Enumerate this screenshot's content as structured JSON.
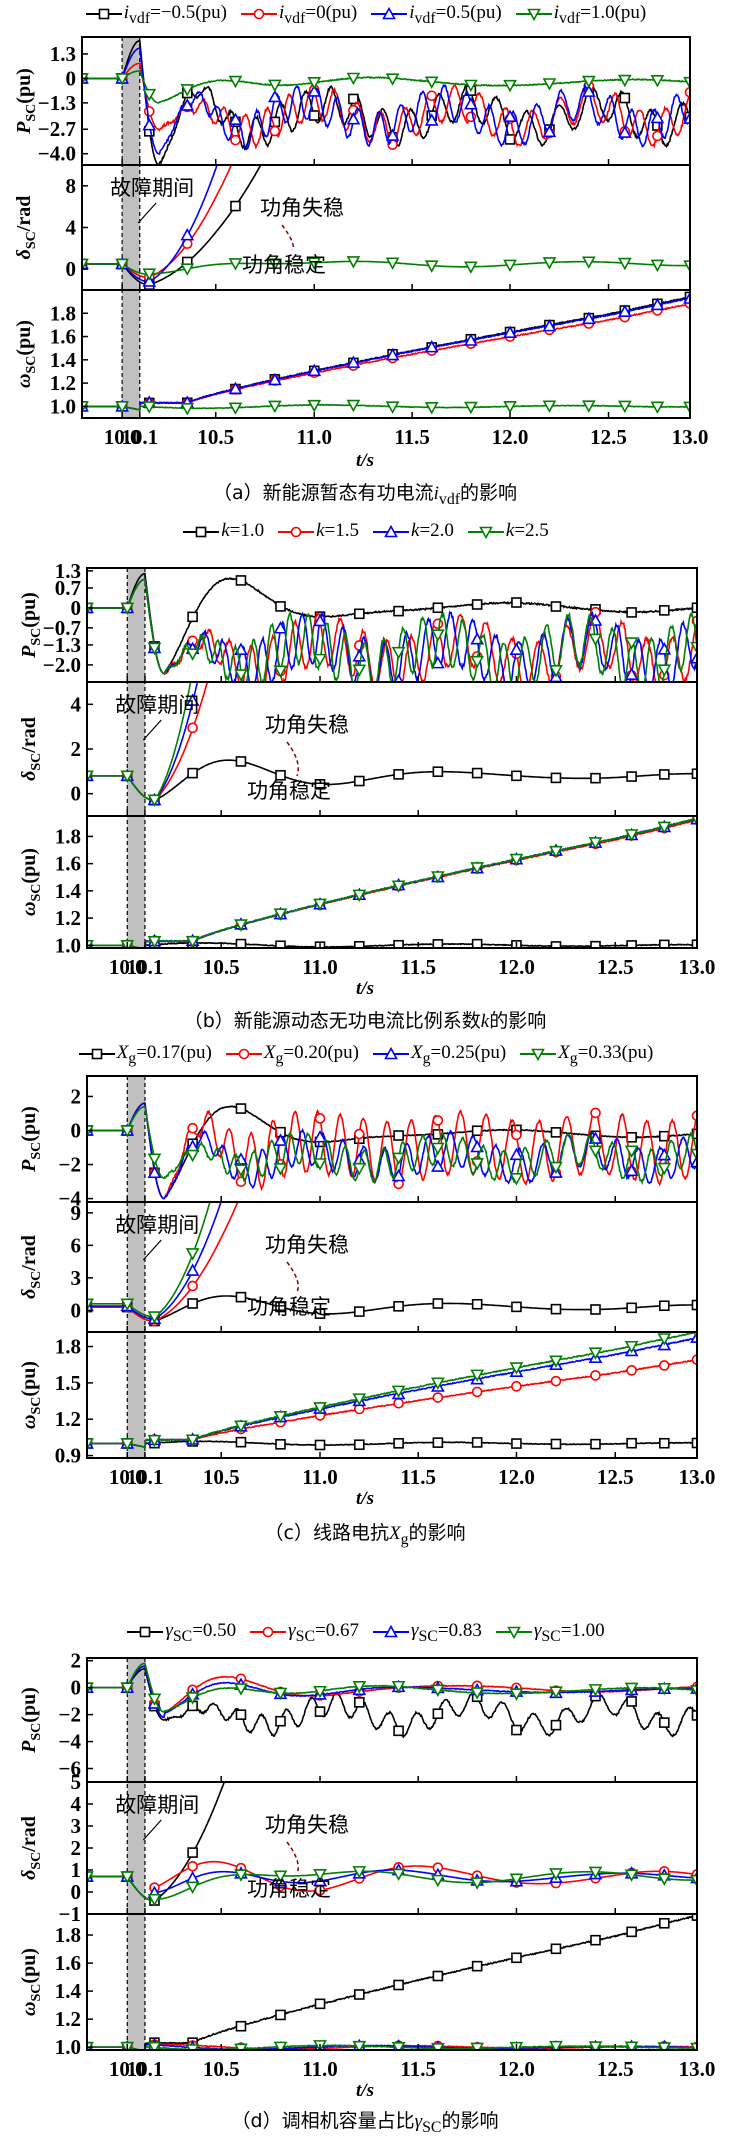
{
  "figure": {
    "xlabel": "t/s",
    "x_ticks": [
      "10.0",
      "10.1",
      "10.5",
      "11.0",
      "11.5",
      "12.0",
      "12.5",
      "13.0"
    ],
    "x_tick_values": [
      10.0,
      10.1,
      10.5,
      11.0,
      11.5,
      12.0,
      12.5,
      13.0
    ],
    "fault_window": [
      10.0,
      10.1
    ],
    "annotations": {
      "fault": "故障期间",
      "unstable": "功角失稳",
      "stable": "功角稳定"
    },
    "series_colors": [
      "#000000",
      "#ff0000",
      "#0000ff",
      "#008000"
    ],
    "series_markers": [
      "square",
      "circle",
      "triangle-up",
      "triangle-down"
    ]
  },
  "chart_data": [
    {
      "id": "a",
      "type": "line",
      "caption": "（a）新能源暂态有功电流i_vdf的影响",
      "caption_parts": {
        "prefix": "（a）新能源暂态有功电流",
        "var": "i",
        "sub": "vdf",
        "suffix": "的影响"
      },
      "legend": [
        {
          "var": "i",
          "sub": "vdf",
          "value": "=−0.5(pu)"
        },
        {
          "var": "i",
          "sub": "vdf",
          "value": "=0(pu)"
        },
        {
          "var": "i",
          "sub": "vdf",
          "value": "=0.5(pu)"
        },
        {
          "var": "i",
          "sub": "vdf",
          "value": "=1.0(pu)"
        }
      ],
      "panels": [
        {
          "quantity": "P",
          "ylabel": "P_SC(pu)",
          "ylim": [
            -4.6,
            2.2
          ],
          "yticks": [
            1.3,
            0,
            -1.3,
            -2.7,
            -4.0
          ],
          "ytick_labels": [
            "1.3",
            "0",
            "−1.3",
            "−2.7",
            "−4.0"
          ],
          "series": [
            {
              "name": "i_vdf=-0.5",
              "behavior": "unstable",
              "pre": 0,
              "fault_peak": 2.0,
              "dip": -4.6,
              "settle": -2.0,
              "osc": 0.9,
              "slow": 0.7
            },
            {
              "name": "i_vdf=0",
              "behavior": "unstable",
              "pre": 0,
              "fault_peak": 0.8,
              "dip": -2.7,
              "settle": -2.0,
              "osc": 0.9,
              "slow": 0.7
            },
            {
              "name": "i_vdf=0.5",
              "behavior": "unstable",
              "pre": 0,
              "fault_peak": 1.6,
              "dip": -4.0,
              "settle": -2.0,
              "osc": 0.9,
              "slow": 0.7
            },
            {
              "name": "i_vdf=1.0",
              "behavior": "stable",
              "pre": 0,
              "fault_peak": 0.4,
              "dip": -1.3,
              "settle": -0.2,
              "osc": 0.3,
              "slow": 0.3
            }
          ]
        },
        {
          "quantity": "delta",
          "ylabel": "δ_SC/rad",
          "ylim": [
            -2.0,
            10.0
          ],
          "yticks": [
            8,
            4,
            0
          ],
          "ytick_labels": [
            "8",
            "4",
            "0"
          ],
          "series": [
            {
              "name": "i_vdf=-0.5",
              "behavior": "unstable",
              "pre": 0.5,
              "min": -1.5
            },
            {
              "name": "i_vdf=0",
              "behavior": "unstable",
              "pre": 0.5,
              "min": -0.8
            },
            {
              "name": "i_vdf=0.5",
              "behavior": "unstable",
              "pre": 0.5,
              "min": -1.2
            },
            {
              "name": "i_vdf=1.0",
              "behavior": "stable",
              "pre": 0.5,
              "min": -0.5,
              "osc": 0.5
            }
          ]
        },
        {
          "quantity": "omega",
          "ylabel": "ω_SC(pu)",
          "ylim": [
            0.9,
            2.0
          ],
          "yticks": [
            1.8,
            1.6,
            1.4,
            1.2,
            1.0
          ],
          "ytick_labels": [
            "1.8",
            "1.6",
            "1.4",
            "1.2",
            "1.0"
          ],
          "series": [
            {
              "name": "i_vdf=-0.5",
              "behavior": "unstable",
              "end": 1.94
            },
            {
              "name": "i_vdf=0",
              "behavior": "unstable",
              "end": 1.88
            },
            {
              "name": "i_vdf=0.5",
              "behavior": "unstable",
              "end": 1.93
            },
            {
              "name": "i_vdf=1.0",
              "behavior": "stable",
              "end": 1.0
            }
          ]
        }
      ]
    },
    {
      "id": "b",
      "type": "line",
      "caption": "（b）新能源动态无功电流比例系数k的影响",
      "caption_parts": {
        "prefix": "（b）新能源动态无功电流比例系数",
        "var": "k",
        "sub": "",
        "suffix": "的影响"
      },
      "legend": [
        {
          "var": "k",
          "sub": "",
          "value": "=1.0"
        },
        {
          "var": "k",
          "sub": "",
          "value": "=1.5"
        },
        {
          "var": "k",
          "sub": "",
          "value": "=2.0"
        },
        {
          "var": "k",
          "sub": "",
          "value": "=2.5"
        }
      ],
      "panels": [
        {
          "quantity": "P",
          "ylabel": "P_SC(pu)",
          "ylim": [
            -2.6,
            1.4
          ],
          "yticks": [
            1.3,
            0.7,
            0,
            -0.7,
            -1.3,
            -2.0
          ],
          "ytick_labels": [
            "1.3",
            "0.7",
            "0",
            "−0.7",
            "−1.3",
            "−2.0"
          ],
          "series": [
            {
              "name": "k=1.0",
              "behavior": "stable",
              "pre": 0,
              "fault_peak": 1.2,
              "dip": -2.3,
              "settle": 0.0,
              "osc": 0.3,
              "slow": 0.2
            },
            {
              "name": "k=1.5",
              "behavior": "unstable",
              "pre": 0,
              "fault_peak": 1.0,
              "dip": -2.3,
              "settle": -1.6,
              "osc": 0.9,
              "slow": 0.5
            },
            {
              "name": "k=2.0",
              "behavior": "unstable",
              "pre": 0,
              "fault_peak": 1.0,
              "dip": -2.3,
              "settle": -1.6,
              "osc": 0.9,
              "slow": 0.5
            },
            {
              "name": "k=2.5",
              "behavior": "unstable",
              "pre": 0,
              "fault_peak": 1.0,
              "dip": -2.3,
              "settle": -1.6,
              "osc": 0.9,
              "slow": 0.5
            }
          ]
        },
        {
          "quantity": "delta",
          "ylabel": "δ_SC/rad",
          "ylim": [
            -1.0,
            5.0
          ],
          "yticks": [
            4,
            2,
            0
          ],
          "ytick_labels": [
            "4",
            "2",
            "0"
          ],
          "series": [
            {
              "name": "k=1.0",
              "behavior": "stable",
              "pre": 0.8,
              "min": -0.3,
              "osc": 0.3
            },
            {
              "name": "k=1.5",
              "behavior": "unstable",
              "pre": 0.8,
              "min": -0.3
            },
            {
              "name": "k=2.0",
              "behavior": "unstable",
              "pre": 0.8,
              "min": -0.3
            },
            {
              "name": "k=2.5",
              "behavior": "unstable",
              "pre": 0.8,
              "min": -0.3
            }
          ]
        },
        {
          "quantity": "omega",
          "ylabel": "ω_SC(pu)",
          "ylim": [
            0.98,
            1.95
          ],
          "yticks": [
            1.8,
            1.6,
            1.4,
            1.2,
            1.0
          ],
          "ytick_labels": [
            "1.8",
            "1.6",
            "1.4",
            "1.2",
            "1.0"
          ],
          "series": [
            {
              "name": "k=1.0",
              "behavior": "stable",
              "end": 1.0
            },
            {
              "name": "k=1.5",
              "behavior": "unstable",
              "end": 1.92
            },
            {
              "name": "k=2.0",
              "behavior": "unstable",
              "end": 1.93
            },
            {
              "name": "k=2.5",
              "behavior": "unstable",
              "end": 1.93
            }
          ]
        }
      ]
    },
    {
      "id": "c",
      "type": "line",
      "caption": "（c）线路电抗X_g的影响",
      "caption_parts": {
        "prefix": "（c）线路电抗",
        "var": "X",
        "sub": "g",
        "suffix": "的影响"
      },
      "legend": [
        {
          "var": "X",
          "sub": "g",
          "value": "=0.17(pu)"
        },
        {
          "var": "X",
          "sub": "g",
          "value": "=0.20(pu)"
        },
        {
          "var": "X",
          "sub": "g",
          "value": "=0.25(pu)"
        },
        {
          "var": "X",
          "sub": "g",
          "value": "=0.33(pu)"
        }
      ],
      "panels": [
        {
          "quantity": "P",
          "ylabel": "P_SC(pu)",
          "ylim": [
            -4.2,
            3.2
          ],
          "yticks": [
            2,
            0,
            -2,
            -4
          ],
          "ytick_labels": [
            "2",
            "0",
            "−2",
            "−4"
          ],
          "series": [
            {
              "name": "Xg=0.17",
              "behavior": "stable",
              "pre": 0,
              "fault_peak": 1.6,
              "dip": -4.0,
              "settle": -0.2,
              "osc": 0.4,
              "slow": 0.3
            },
            {
              "name": "Xg=0.20",
              "behavior": "unstable",
              "pre": 0,
              "fault_peak": 1.6,
              "dip": -4.0,
              "settle": -1.0,
              "osc": 1.8,
              "slow": 0.3
            },
            {
              "name": "Xg=0.25",
              "behavior": "unstable",
              "pre": 0,
              "fault_peak": 1.6,
              "dip": -4.0,
              "settle": -1.6,
              "osc": 1.0,
              "slow": 0.5
            },
            {
              "name": "Xg=0.33",
              "behavior": "unstable",
              "pre": 0,
              "fault_peak": 1.4,
              "dip": -2.8,
              "settle": -1.6,
              "osc": 0.9,
              "slow": 0.5
            }
          ]
        },
        {
          "quantity": "delta",
          "ylabel": "δ_SC/rad",
          "ylim": [
            -2.0,
            10.0
          ],
          "yticks": [
            9,
            6,
            3,
            0
          ],
          "ytick_labels": [
            "9",
            "6",
            "3",
            "0"
          ],
          "series": [
            {
              "name": "Xg=0.17",
              "behavior": "stable",
              "pre": 0.3,
              "min": -1.0,
              "osc": 0.6
            },
            {
              "name": "Xg=0.20",
              "behavior": "unstable",
              "pre": 0.3,
              "min": -1.0
            },
            {
              "name": "Xg=0.25",
              "behavior": "unstable",
              "pre": 0.4,
              "min": -0.8
            },
            {
              "name": "Xg=0.33",
              "behavior": "unstable",
              "pre": 0.6,
              "min": -0.6
            }
          ]
        },
        {
          "quantity": "omega",
          "ylabel": "ω_SC(pu)",
          "ylim": [
            0.88,
            1.92
          ],
          "yticks": [
            1.8,
            1.5,
            1.2,
            0.9
          ],
          "ytick_labels": [
            "1.8",
            "1.5",
            "1.2",
            "0.9"
          ],
          "series": [
            {
              "name": "Xg=0.17",
              "behavior": "stable",
              "end": 1.0
            },
            {
              "name": "Xg=0.20",
              "behavior": "unstable",
              "end": 1.69
            },
            {
              "name": "Xg=0.25",
              "behavior": "unstable",
              "end": 1.87
            },
            {
              "name": "Xg=0.33",
              "behavior": "unstable",
              "end": 1.92
            }
          ]
        }
      ]
    },
    {
      "id": "d",
      "type": "line",
      "caption": "（d）调相机容量占比γ_SC的影响",
      "caption_parts": {
        "prefix": "（d）调相机容量占比",
        "var": "γ",
        "sub": "SC",
        "suffix": "的影响"
      },
      "legend": [
        {
          "var": "γ",
          "sub": "SC",
          "value": "=0.50"
        },
        {
          "var": "γ",
          "sub": "SC",
          "value": "=0.67"
        },
        {
          "var": "γ",
          "sub": "SC",
          "value": "=0.83"
        },
        {
          "var": "γ",
          "sub": "SC",
          "value": "=1.00"
        }
      ],
      "panels": [
        {
          "quantity": "P",
          "ylabel": "P_SC(pu)",
          "ylim": [
            -7.0,
            2.2
          ],
          "yticks": [
            2,
            0,
            -2,
            -4,
            -6
          ],
          "ytick_labels": [
            "2",
            "0",
            "−2",
            "−4",
            "−6"
          ],
          "series": [
            {
              "name": "γSC=0.50",
              "behavior": "unstable",
              "pre": 0,
              "fault_peak": 1.4,
              "dip": -2.4,
              "settle": -2.0,
              "osc": 0.8,
              "slow": 0.8
            },
            {
              "name": "γSC=0.67",
              "behavior": "stable",
              "pre": 0,
              "fault_peak": 1.6,
              "dip": -2.2,
              "settle": -0.1,
              "osc": 0.4,
              "slow": 0.3
            },
            {
              "name": "γSC=0.83",
              "behavior": "stable",
              "pre": 0,
              "fault_peak": 1.6,
              "dip": -2.2,
              "settle": -0.2,
              "osc": 0.3,
              "slow": 0.2
            },
            {
              "name": "γSC=1.00",
              "behavior": "stable",
              "pre": 0,
              "fault_peak": 1.8,
              "dip": -1.8,
              "settle": -0.2,
              "osc": 0.4,
              "slow": 0.3
            }
          ]
        },
        {
          "quantity": "delta",
          "ylabel": "δ_SC/rad",
          "ylim": [
            -1.0,
            5.0
          ],
          "yticks": [
            5,
            4,
            3,
            2,
            1,
            0,
            -1
          ],
          "ytick_labels": [
            "5",
            "4",
            "3",
            "2",
            "1",
            "0",
            "−1"
          ],
          "series": [
            {
              "name": "γSC=0.50",
              "behavior": "unstable",
              "pre": 0.7,
              "min": -0.4
            },
            {
              "name": "γSC=0.67",
              "behavior": "stable",
              "pre": 0.7,
              "min": -0.4,
              "osc": 0.7
            },
            {
              "name": "γSC=0.83",
              "behavior": "stable",
              "pre": 0.7,
              "min": -0.4,
              "osc": 0.4
            },
            {
              "name": "γSC=1.00",
              "behavior": "stable",
              "pre": 0.7,
              "min": -0.4,
              "osc": 0.5
            }
          ]
        },
        {
          "quantity": "omega",
          "ylabel": "ω_SC(pu)",
          "ylim": [
            0.98,
            1.95
          ],
          "yticks": [
            1.8,
            1.6,
            1.4,
            1.2,
            1.0
          ],
          "ytick_labels": [
            "1.8",
            "1.6",
            "1.4",
            "1.2",
            "1.0"
          ],
          "series": [
            {
              "name": "γSC=0.50",
              "behavior": "unstable",
              "end": 1.94
            },
            {
              "name": "γSC=0.67",
              "behavior": "stable",
              "end": 1.0
            },
            {
              "name": "γSC=0.83",
              "behavior": "stable",
              "end": 1.0
            },
            {
              "name": "γSC=1.00",
              "behavior": "stable",
              "end": 1.0
            }
          ]
        }
      ]
    }
  ]
}
